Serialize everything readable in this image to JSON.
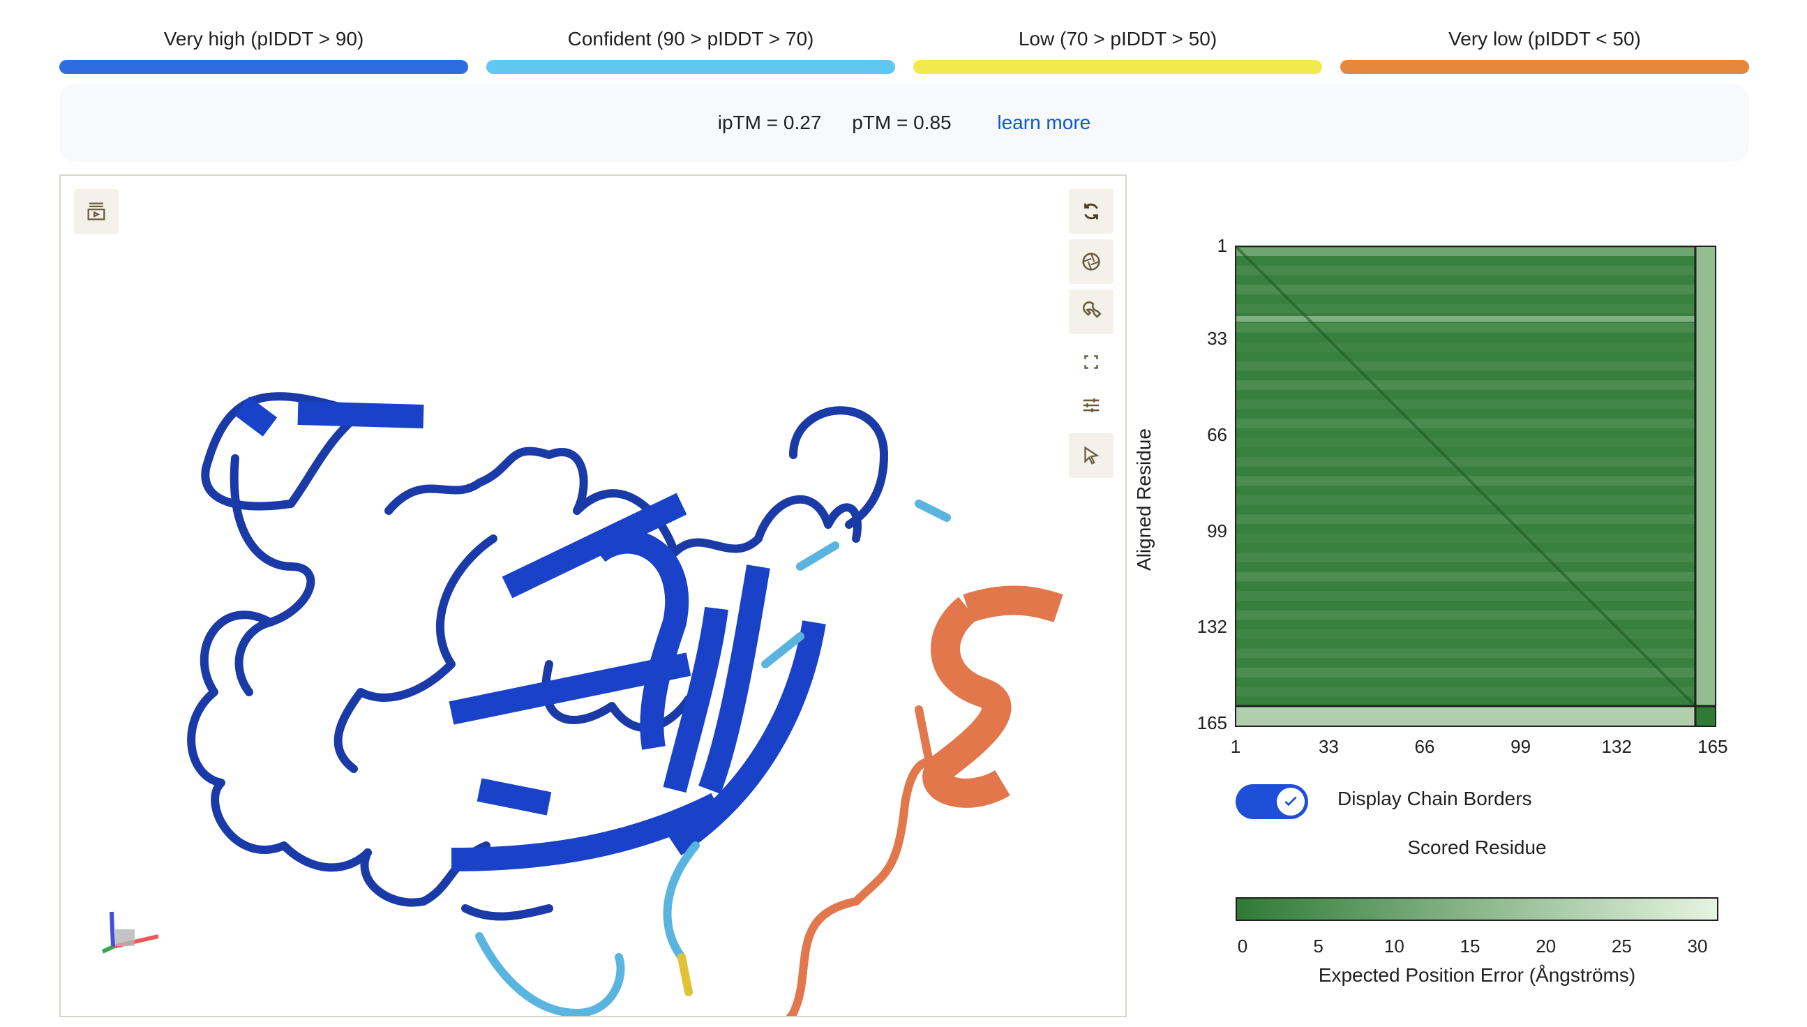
{
  "legend": [
    {
      "label": "Very high (pIDDT > 90)",
      "color": "#2e6de0"
    },
    {
      "label": "Confident (90 > pIDDT > 70)",
      "color": "#5fc8ee"
    },
    {
      "label": "Low (70 > pIDDT > 50)",
      "color": "#f2e94e"
    },
    {
      "label": "Very low (pIDDT < 50)",
      "color": "#e5883b"
    }
  ],
  "metrics": {
    "iptm": "ipTM = 0.27",
    "ptm": "pTM = 0.85",
    "learn_more": "learn more"
  },
  "viewer": {
    "icons": [
      "screenshot-sequence-icon",
      "rotate-icon",
      "camera-aperture-icon",
      "wrench-icon",
      "fullscreen-icon",
      "sliders-icon",
      "cursor-icon"
    ],
    "colors": {
      "very_high": "#1434b8",
      "confident": "#5ab4e0",
      "low": "#e0c236",
      "very_low": "#e1774a"
    }
  },
  "pae": {
    "y_axis_label": "Aligned Residue",
    "x_axis_label": "Scored Residue",
    "y_ticks": [
      "1",
      "33",
      "66",
      "99",
      "132",
      "165"
    ],
    "x_ticks": [
      "1",
      "33",
      "66",
      "99",
      "132",
      "165"
    ],
    "toggle_label": "Display Chain Borders",
    "toggle_on": true,
    "colorbar_ticks": [
      "0",
      "5",
      "10",
      "15",
      "20",
      "25",
      "30"
    ],
    "colorbar_label": "Expected Position Error (Ångströms)",
    "colorbar_colors": [
      "#2f7a35",
      "#e6f4e1"
    ],
    "chain_a_length": 159,
    "total_length": 166
  }
}
